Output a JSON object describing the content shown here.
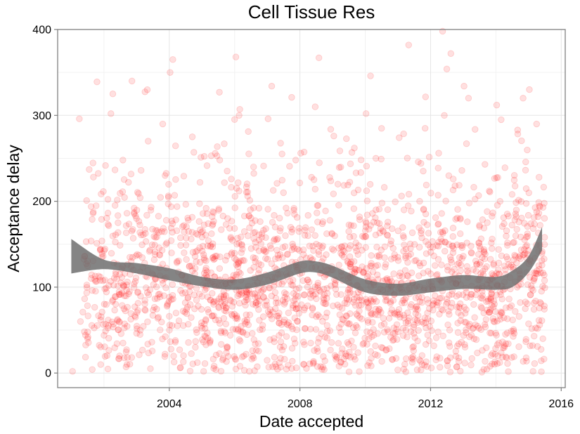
{
  "chart_data": {
    "type": "scatter",
    "title": "Cell Tissue Res",
    "xlabel": "Date accepted",
    "ylabel": "Acceptance delay",
    "x_ticks": [
      "2004",
      "2008",
      "2012",
      "2016"
    ],
    "y_ticks": [
      "0",
      "100",
      "200",
      "300",
      "400"
    ],
    "xlim": [
      "2000-08-01",
      "2016-02-15"
    ],
    "ylim": [
      -17,
      400
    ],
    "grid": true,
    "point_color": "#ff0000",
    "point_opacity": 0.12,
    "smooth_color": "#6e6e6e",
    "smooth": {
      "x": [
        "2001-01-01",
        "2002-01-01",
        "2003-01-01",
        "2004-01-01",
        "2005-01-01",
        "2006-01-01",
        "2007-01-01",
        "2008-01-01",
        "2008-07-01",
        "2009-01-01",
        "2010-01-01",
        "2011-01-01",
        "2012-01-01",
        "2013-01-01",
        "2014-01-01",
        "2014-07-01",
        "2015-01-01",
        "2015-06-01"
      ],
      "lower": [
        116,
        121,
        116,
        108,
        101,
        97,
        103,
        116,
        117,
        111,
        94,
        90,
        94,
        98,
        97,
        100,
        117,
        143
      ],
      "upper": [
        156,
        132,
        128,
        122,
        112,
        109,
        117,
        130,
        130,
        125,
        109,
        104,
        110,
        114,
        112,
        119,
        136,
        170
      ]
    },
    "points": [
      {
        "x": "2001-01-15",
        "y": 2
      },
      {
        "x": "2001-04-01",
        "y": 296
      },
      {
        "x": "2001-05-10",
        "y": 71
      },
      {
        "x": "2001-07-20",
        "y": 237
      },
      {
        "x": "2001-09-01",
        "y": 186
      },
      {
        "x": "2001-10-15",
        "y": 339
      },
      {
        "x": "2001-11-20",
        "y": 143
      },
      {
        "x": "2002-01-10",
        "y": 98
      },
      {
        "x": "2002-02-15",
        "y": 173
      },
      {
        "x": "2002-03-20",
        "y": 302
      },
      {
        "x": "2002-04-10",
        "y": 325
      },
      {
        "x": "2002-05-05",
        "y": 89
      },
      {
        "x": "2002-06-20",
        "y": 60
      },
      {
        "x": "2002-08-01",
        "y": 248
      },
      {
        "x": "2002-09-15",
        "y": 10
      },
      {
        "x": "2002-10-20",
        "y": 115
      },
      {
        "x": "2002-11-10",
        "y": 340
      },
      {
        "x": "2002-12-20",
        "y": 183
      },
      {
        "x": "2003-01-15",
        "y": 73
      },
      {
        "x": "2003-02-20",
        "y": 236
      },
      {
        "x": "2003-04-01",
        "y": 128
      },
      {
        "x": "2003-05-10",
        "y": 270
      },
      {
        "x": "2003-06-20",
        "y": 36
      },
      {
        "x": "2003-08-01",
        "y": 158
      },
      {
        "x": "2003-09-15",
        "y": 92
      },
      {
        "x": "2003-10-20",
        "y": 290
      },
      {
        "x": "2003-11-15",
        "y": 230
      },
      {
        "x": "2003-12-20",
        "y": 197
      },
      {
        "x": "2004-01-10",
        "y": 350
      },
      {
        "x": "2004-02-10",
        "y": 365
      },
      {
        "x": "2004-03-01",
        "y": 207
      },
      {
        "x": "2004-04-01",
        "y": 55
      },
      {
        "x": "2004-05-01",
        "y": 6
      },
      {
        "x": "2004-06-15",
        "y": 140
      },
      {
        "x": "2004-08-01",
        "y": 178
      },
      {
        "x": "2004-09-15",
        "y": 275
      },
      {
        "x": "2004-11-01",
        "y": 85
      },
      {
        "x": "2004-12-10",
        "y": 222
      },
      {
        "x": "2005-01-20",
        "y": 2
      },
      {
        "x": "2005-03-01",
        "y": 118
      },
      {
        "x": "2005-04-15",
        "y": 253
      },
      {
        "x": "2005-06-01",
        "y": 62
      },
      {
        "x": "2005-07-15",
        "y": 327
      },
      {
        "x": "2005-09-01",
        "y": 95
      },
      {
        "x": "2005-10-15",
        "y": 180
      },
      {
        "x": "2005-12-01",
        "y": 140
      },
      {
        "x": "2006-01-15",
        "y": 368
      },
      {
        "x": "2006-02-20",
        "y": 300
      },
      {
        "x": "2006-04-01",
        "y": 48
      },
      {
        "x": "2006-05-10",
        "y": 22
      },
      {
        "x": "2006-06-15",
        "y": 2
      },
      {
        "x": "2006-08-01",
        "y": 240
      },
      {
        "x": "2006-09-15",
        "y": 105
      },
      {
        "x": "2006-11-01",
        "y": 158
      },
      {
        "x": "2007-01-10",
        "y": 296
      },
      {
        "x": "2007-02-20",
        "y": 334
      },
      {
        "x": "2007-04-01",
        "y": 75
      },
      {
        "x": "2007-05-15",
        "y": 12
      },
      {
        "x": "2007-07-01",
        "y": 210
      },
      {
        "x": "2007-08-15",
        "y": 138
      },
      {
        "x": "2007-10-01",
        "y": 321
      },
      {
        "x": "2007-11-15",
        "y": 248
      },
      {
        "x": "2008-01-10",
        "y": 256
      },
      {
        "x": "2008-02-20",
        "y": 33
      },
      {
        "x": "2008-04-01",
        "y": 160
      },
      {
        "x": "2008-05-10",
        "y": 228
      },
      {
        "x": "2008-06-20",
        "y": 310
      },
      {
        "x": "2008-08-01",
        "y": 367
      },
      {
        "x": "2008-09-15",
        "y": 7
      },
      {
        "x": "2008-11-01",
        "y": 120
      },
      {
        "x": "2009-01-15",
        "y": 276
      },
      {
        "x": "2009-03-01",
        "y": 220
      },
      {
        "x": "2009-05-01",
        "y": 62
      },
      {
        "x": "2009-07-01",
        "y": 145
      },
      {
        "x": "2009-09-01",
        "y": 262
      },
      {
        "x": "2009-11-01",
        "y": 88
      },
      {
        "x": "2010-01-10",
        "y": 302
      },
      {
        "x": "2010-03-01",
        "y": 346
      },
      {
        "x": "2010-05-01",
        "y": 190
      },
      {
        "x": "2010-07-01",
        "y": 30
      },
      {
        "x": "2010-09-01",
        "y": 110
      },
      {
        "x": "2010-11-01",
        "y": 16
      },
      {
        "x": "2011-01-15",
        "y": 274
      },
      {
        "x": "2011-03-01",
        "y": 160
      },
      {
        "x": "2011-05-01",
        "y": 382
      },
      {
        "x": "2011-07-01",
        "y": 56
      },
      {
        "x": "2011-09-01",
        "y": 200
      },
      {
        "x": "2011-11-01",
        "y": 285
      },
      {
        "x": "2012-01-10",
        "y": 6
      },
      {
        "x": "2012-02-20",
        "y": 90
      },
      {
        "x": "2012-04-01",
        "y": 256
      },
      {
        "x": "2012-05-15",
        "y": 398
      },
      {
        "x": "2012-07-01",
        "y": 354
      },
      {
        "x": "2012-08-15",
        "y": 372
      },
      {
        "x": "2012-10-01",
        "y": 218
      },
      {
        "x": "2012-11-15",
        "y": 128
      },
      {
        "x": "2013-01-10",
        "y": 334
      },
      {
        "x": "2013-03-01",
        "y": 320
      },
      {
        "x": "2013-05-01",
        "y": 40
      },
      {
        "x": "2013-07-01",
        "y": 172
      },
      {
        "x": "2013-09-01",
        "y": 243
      },
      {
        "x": "2013-11-01",
        "y": 74
      },
      {
        "x": "2014-01-10",
        "y": 312
      },
      {
        "x": "2014-03-01",
        "y": 295
      },
      {
        "x": "2014-05-01",
        "y": 18
      },
      {
        "x": "2014-07-01",
        "y": 208
      },
      {
        "x": "2014-09-01",
        "y": 283
      },
      {
        "x": "2014-11-01",
        "y": 320
      },
      {
        "x": "2015-01-10",
        "y": 330
      },
      {
        "x": "2015-02-20",
        "y": 2
      },
      {
        "x": "2015-04-01",
        "y": 290
      },
      {
        "x": "2015-05-10",
        "y": 172
      },
      {
        "x": "2015-06-10",
        "y": 40
      }
    ]
  }
}
